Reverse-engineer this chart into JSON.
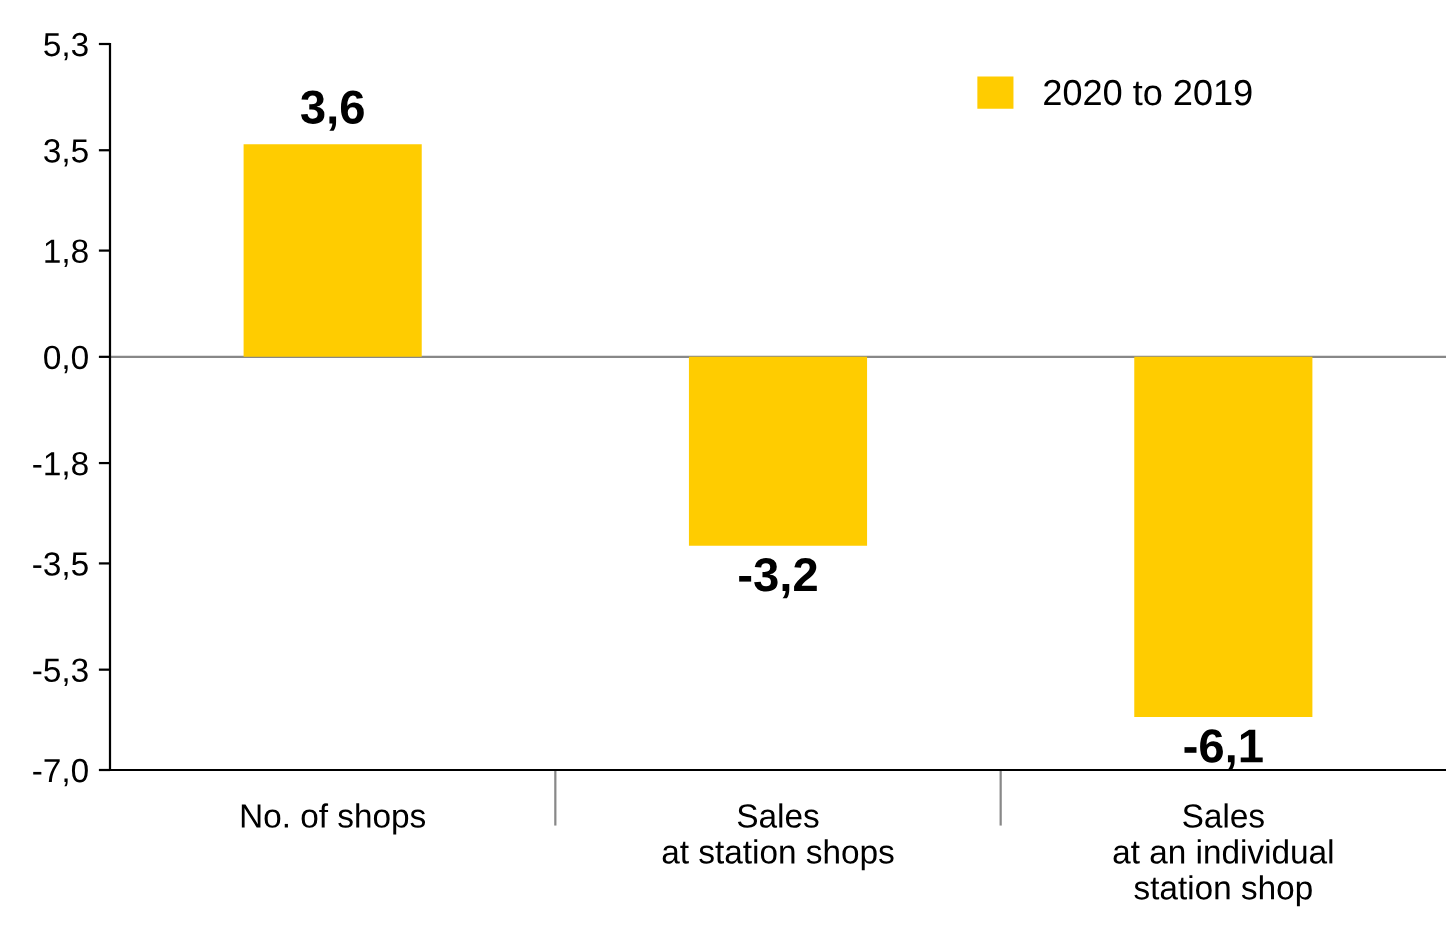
{
  "chart_data": {
    "type": "bar",
    "categories": [
      "No. of shops",
      "Sales\nat station shops",
      "Sales\nat an individual\nstation shop"
    ],
    "series": [
      {
        "name": "2020 to 2019",
        "color": "#ffcc00",
        "values": [
          3.6,
          -3.2,
          -6.1
        ],
        "value_labels": [
          "3,6",
          "-3,2",
          "-6,1"
        ]
      }
    ],
    "ylim": [
      -7.0,
      5.3
    ],
    "yticks": [
      {
        "value": 5.3,
        "label": "5,3"
      },
      {
        "value": 3.5,
        "label": "3,5"
      },
      {
        "value": 1.8,
        "label": "1,8"
      },
      {
        "value": 0.0,
        "label": "0,0"
      },
      {
        "value": -1.8,
        "label": "-1,8"
      },
      {
        "value": -3.5,
        "label": "-3,5"
      },
      {
        "value": -5.3,
        "label": "-5,3"
      },
      {
        "value": -7.0,
        "label": "-7,0"
      }
    ],
    "ref_lines": [
      {
        "axis": "y",
        "value": 0.0,
        "color": "#888888"
      }
    ],
    "grid": false,
    "legend": "top right"
  }
}
